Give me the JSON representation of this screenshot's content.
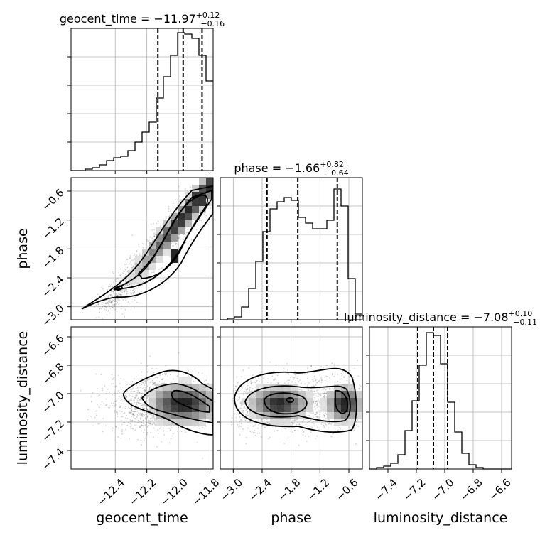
{
  "chart_data": {
    "type": "corner",
    "parameters": [
      "geocent_time",
      "phase",
      "luminosity_distance"
    ],
    "titles": [
      {
        "param": "geocent_time",
        "text": "geocent_time = −11.97",
        "plus": "+0.12",
        "minus": "−0.16"
      },
      {
        "param": "phase",
        "text": "phase = −1.66",
        "plus": "+0.82",
        "minus": "−0.64"
      },
      {
        "param": "luminosity_distance",
        "text": "luminosity_distance = −7.08",
        "plus": "+0.10",
        "minus": "−0.11"
      }
    ],
    "axis_labels": {
      "x": [
        "geocent_time",
        "phase",
        "luminosity_distance"
      ],
      "y": [
        "phase",
        "luminosity_distance"
      ]
    },
    "ranges": {
      "geocent_time": [
        -12.68,
        -11.78
      ],
      "phase": [
        -3.27,
        -0.32
      ],
      "luminosity_distance": [
        -7.53,
        -6.53
      ]
    },
    "ticks": {
      "geocent_time": {
        "values": [
          -12.4,
          -12.2,
          -12.0,
          -11.8
        ],
        "labels": [
          "−12.4",
          "−12.2",
          "−12.0",
          "−11.8"
        ]
      },
      "phase": {
        "values": [
          -3.0,
          -2.4,
          -1.8,
          -1.2,
          -0.6
        ],
        "labels": [
          "−3.0",
          "−2.4",
          "−1.8",
          "−1.2",
          "−0.6"
        ]
      },
      "luminosity_distance": {
        "values": [
          -7.4,
          -7.2,
          -7.0,
          -6.8,
          -6.6
        ],
        "labels": [
          "−7.4",
          "−7.2",
          "−7.0",
          "−6.8",
          "−6.6"
        ]
      }
    },
    "quantile_lines": {
      "geocent_time": [
        -12.13,
        -11.97,
        -11.85
      ],
      "phase": [
        -2.3,
        -1.66,
        -0.84
      ],
      "luminosity_distance": [
        -7.19,
        -7.08,
        -6.98
      ]
    },
    "histograms_1d": {
      "geocent_time": {
        "edges": [
          -12.68,
          -12.635,
          -12.59,
          -12.545,
          -12.5,
          -12.455,
          -12.41,
          -12.365,
          -12.32,
          -12.275,
          -12.23,
          -12.185,
          -12.14,
          -12.095,
          -12.05,
          -12.005,
          -11.96,
          -11.915,
          -11.87,
          -11.825,
          -11.78
        ],
        "counts": [
          0,
          0,
          0.01,
          0.02,
          0.04,
          0.07,
          0.09,
          0.1,
          0.14,
          0.2,
          0.27,
          0.34,
          0.51,
          0.66,
          0.81,
          0.97,
          0.96,
          0.93,
          0.81,
          0.63
        ]
      },
      "phase": {
        "edges": [
          -3.27,
          -3.1225,
          -2.975,
          -2.8275,
          -2.68,
          -2.5325,
          -2.385,
          -2.2375,
          -2.09,
          -1.9425,
          -1.795,
          -1.6475,
          -1.5,
          -1.3525,
          -1.205,
          -1.0575,
          -0.91,
          -0.7625,
          -0.615,
          -0.4675,
          -0.32
        ],
        "counts": [
          0,
          0.01,
          0.02,
          0.09,
          0.22,
          0.41,
          0.62,
          0.78,
          0.83,
          0.86,
          0.84,
          0.72,
          0.68,
          0.64,
          0.64,
          0.7,
          0.92,
          0.8,
          0.29,
          0.04
        ]
      },
      "luminosity_distance": {
        "edges": [
          -7.53,
          -7.48,
          -7.43,
          -7.38,
          -7.33,
          -7.28,
          -7.23,
          -7.18,
          -7.13,
          -7.08,
          -7.03,
          -6.98,
          -6.93,
          -6.88,
          -6.83,
          -6.78,
          -6.73,
          -6.68,
          -6.63,
          -6.58,
          -6.53
        ],
        "counts": [
          0,
          0.01,
          0.02,
          0.04,
          0.1,
          0.27,
          0.48,
          0.73,
          0.96,
          0.94,
          0.74,
          0.47,
          0.26,
          0.11,
          0.03,
          0.01,
          0,
          0,
          0,
          0
        ]
      }
    },
    "pairs_2d": [
      {
        "x": "geocent_time",
        "y": "phase",
        "centers": [
          [
            -12.12,
            -2.58
          ],
          [
            -12.03,
            -1.92
          ],
          [
            -11.95,
            -1.45
          ],
          [
            -11.86,
            -0.82
          ]
        ]
      },
      {
        "x": "geocent_time",
        "y": "luminosity_distance",
        "centers": [
          [
            -12.05,
            -7.04
          ],
          [
            -11.95,
            -7.06
          ],
          [
            -11.86,
            -7.1
          ]
        ]
      },
      {
        "x": "phase",
        "y": "luminosity_distance",
        "centers": [
          [
            -2.2,
            -7.07
          ],
          [
            -1.65,
            -7.08
          ],
          [
            -0.75,
            -7.07
          ]
        ]
      }
    ],
    "grid": true
  }
}
